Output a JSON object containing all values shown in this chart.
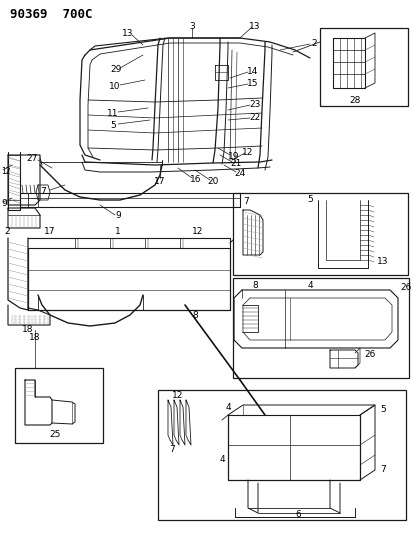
{
  "title": "90369  700C",
  "bg_color": "#ffffff",
  "fig_width": 4.14,
  "fig_height": 5.33,
  "dpi": 100,
  "lc": "#1a1a1a"
}
